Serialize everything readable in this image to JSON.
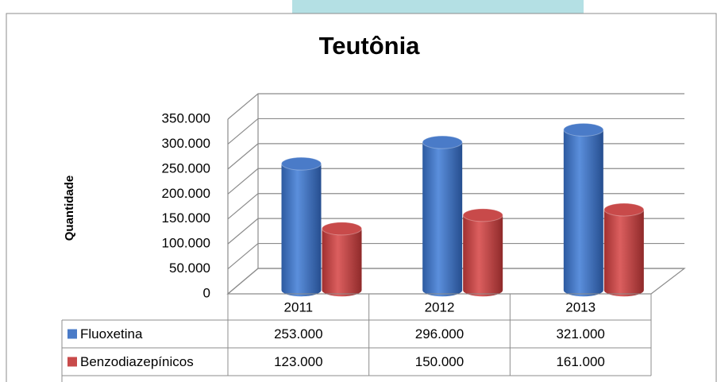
{
  "chart_data": {
    "type": "bar",
    "title": "Teutônia",
    "y_label": "Quantidade",
    "categories": [
      "2011",
      "2012",
      "2013"
    ],
    "series": [
      {
        "name": "Fluoxetina",
        "color": "#4a7bc8",
        "values": [
          253000,
          296000,
          321000
        ],
        "value_labels": [
          "253.000",
          "296.000",
          "321.000"
        ]
      },
      {
        "name": "Benzodiazepínicos",
        "color": "#c84a4a",
        "values": [
          123000,
          150000,
          161000
        ],
        "value_labels": [
          "123.000",
          "150.000",
          "161.000"
        ]
      }
    ],
    "ylim": [
      0,
      350000
    ],
    "yticks": [
      0,
      {
        "value": 50000,
        "label": "50.000"
      },
      {
        "value": 100000,
        "label": "100.000"
      },
      {
        "value": 150000,
        "label": "150.000"
      },
      {
        "value": 200000,
        "label": "200.000"
      },
      {
        "value": 250000,
        "label": "250.000"
      },
      {
        "value": 300000,
        "label": "300.000"
      },
      {
        "value": 350000,
        "label": "350.000"
      }
    ],
    "grid": true
  }
}
